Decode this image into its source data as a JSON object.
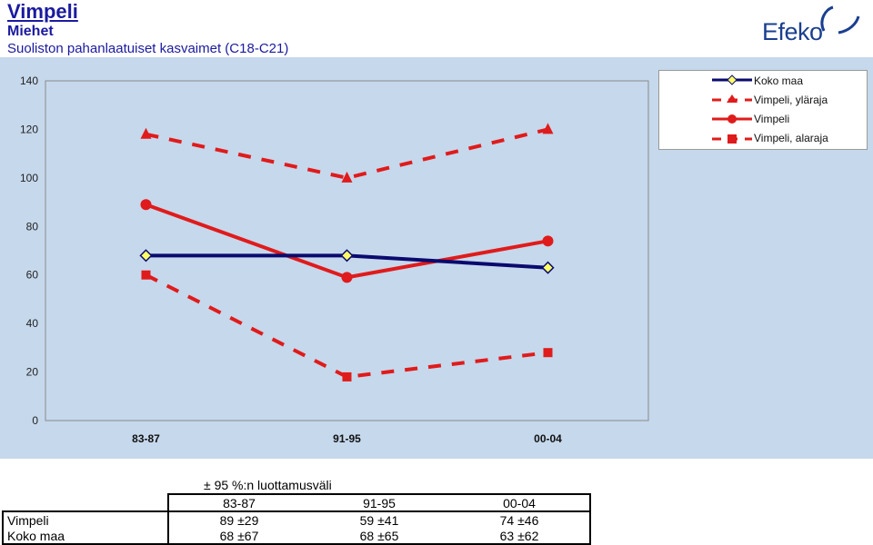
{
  "header": {
    "title": "Vimpeli",
    "subtitle": "Miehet",
    "subtitle2": "Suoliston pahanlaatuiset kasvaimet (C18-C21)",
    "logo_text": "Efeko"
  },
  "colors": {
    "background": "#c6d8ec",
    "koko_maa": "#0a0a6e",
    "vimpeli": "#e01b1b",
    "diamond_fill": "#ffff66"
  },
  "chart_data": {
    "type": "line",
    "categories": [
      "83-87",
      "91-95",
      "00-04"
    ],
    "ylim": [
      0,
      140
    ],
    "yticks": [
      "0",
      "20",
      "40",
      "60",
      "80",
      "100",
      "120",
      "140"
    ],
    "grid": false,
    "legend_position": "top-right",
    "series": [
      {
        "name": "Koko maa",
        "values": [
          68,
          68,
          63
        ],
        "style": "solid",
        "marker": "diamond",
        "color": "#0a0a6e"
      },
      {
        "name": "Vimpeli, yläraja",
        "values": [
          118,
          100,
          120
        ],
        "style": "dashed",
        "marker": "triangle",
        "color": "#e01b1b"
      },
      {
        "name": "Vimpeli",
        "values": [
          89,
          59,
          74
        ],
        "style": "solid",
        "marker": "circle",
        "color": "#e01b1b"
      },
      {
        "name": "Vimpeli, alaraja",
        "values": [
          60,
          18,
          28
        ],
        "style": "dashed",
        "marker": "square",
        "color": "#e01b1b"
      }
    ]
  },
  "ci_table": {
    "note": "± 95 %:n luottamusväli",
    "columns": [
      "83-87",
      "91-95",
      "00-04"
    ],
    "rows": [
      {
        "label": "Vimpeli",
        "values": [
          "89 ±29",
          "59 ±41",
          "74 ±46"
        ]
      },
      {
        "label": "Koko maa",
        "values": [
          "68 ±67",
          "68 ±65",
          "63 ±62"
        ]
      }
    ]
  }
}
